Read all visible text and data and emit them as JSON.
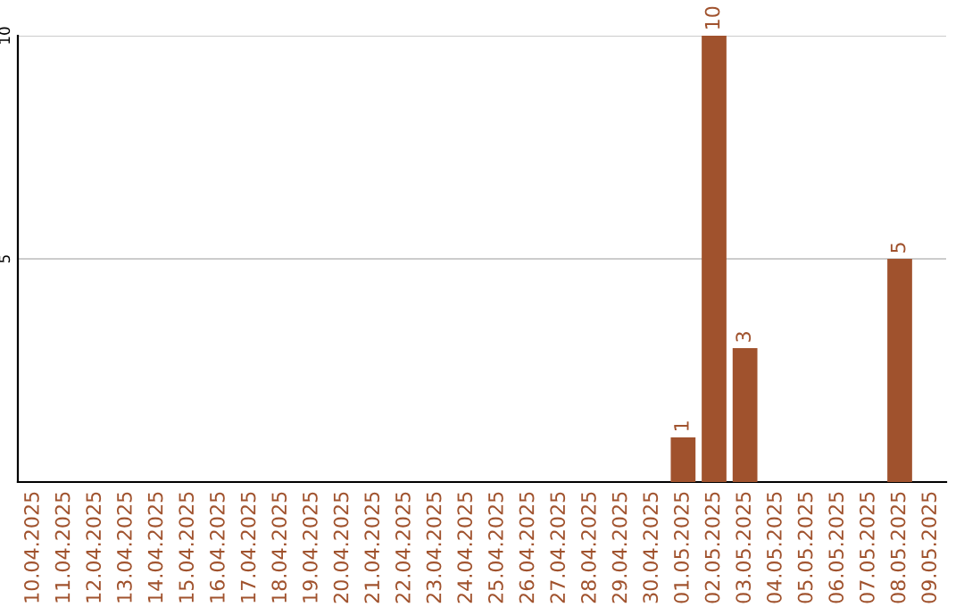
{
  "chart_data": {
    "type": "bar",
    "categories": [
      "10.04.2025",
      "11.04.2025",
      "12.04.2025",
      "13.04.2025",
      "14.04.2025",
      "15.04.2025",
      "16.04.2025",
      "17.04.2025",
      "18.04.2025",
      "19.04.2025",
      "20.04.2025",
      "21.04.2025",
      "22.04.2025",
      "23.04.2025",
      "24.04.2025",
      "25.04.2025",
      "26.04.2025",
      "27.04.2025",
      "28.04.2025",
      "29.04.2025",
      "30.04.2025",
      "01.05.2025",
      "02.05.2025",
      "03.05.2025",
      "04.05.2025",
      "05.05.2025",
      "06.05.2025",
      "07.05.2025",
      "08.05.2025",
      "09.05.2025"
    ],
    "values": [
      0,
      0,
      0,
      0,
      0,
      0,
      0,
      0,
      0,
      0,
      0,
      0,
      0,
      0,
      0,
      0,
      0,
      0,
      0,
      0,
      0,
      1,
      10,
      3,
      0,
      0,
      0,
      0,
      5,
      0
    ],
    "value_labels": [
      null,
      null,
      null,
      null,
      null,
      null,
      null,
      null,
      null,
      null,
      null,
      null,
      null,
      null,
      null,
      null,
      null,
      null,
      null,
      null,
      null,
      "1",
      "10",
      "3",
      null,
      null,
      null,
      null,
      "5",
      null
    ],
    "color": "#a0522d",
    "ylim": [
      0,
      10
    ],
    "yticks": [
      5,
      10
    ],
    "grid": "y",
    "legend": false
  }
}
